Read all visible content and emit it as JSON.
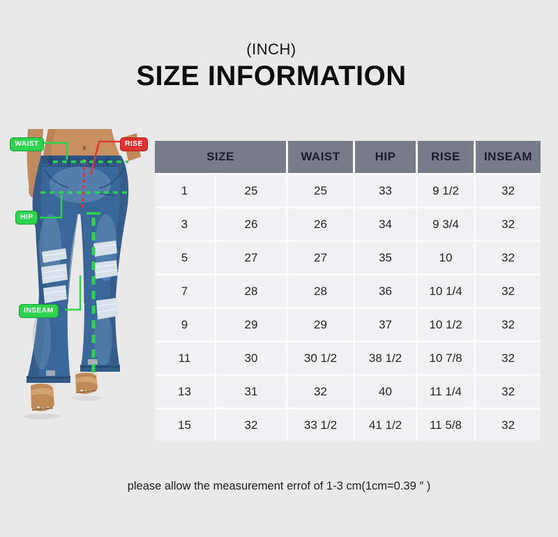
{
  "header": {
    "unit_label": "(INCH)",
    "title": "SIZE INFORMATION"
  },
  "figure": {
    "waist_label": "WAIST",
    "rise_label": "RISE",
    "hip_label": "HIP",
    "inseam_label": "INSEAM"
  },
  "chart_data": {
    "type": "table",
    "title": "SIZE INFORMATION",
    "unit_label": "(INCH)",
    "header_row": [
      "SIZE",
      "WAIST",
      "HIP",
      "RISE",
      "INSEAM"
    ],
    "size_header_colspan": 2,
    "rows": [
      [
        "1",
        "25",
        "25",
        "33",
        "9 1/2",
        "32"
      ],
      [
        "3",
        "26",
        "26",
        "34",
        "9 3/4",
        "32"
      ],
      [
        "5",
        "27",
        "27",
        "35",
        "10",
        "32"
      ],
      [
        "7",
        "28",
        "28",
        "36",
        "10 1/4",
        "32"
      ],
      [
        "9",
        "29",
        "29",
        "37",
        "10 1/2",
        "32"
      ],
      [
        "11",
        "30",
        "30 1/2",
        "38 1/2",
        "10 7/8",
        "32"
      ],
      [
        "13",
        "31",
        "32",
        "40",
        "11 1/4",
        "32"
      ],
      [
        "15",
        "32",
        "33 1/2",
        "41 1/2",
        "11 5/8",
        "32"
      ]
    ]
  },
  "footer": {
    "note": "please allow the measurement errof of 1-3 cm(1cm=0.39 ″ )"
  },
  "colors": {
    "page_bg": "#e9e9e9",
    "header_bg": "#787c89",
    "row_bg": "#f1f1f3",
    "table_gap": "#fbfbfb",
    "annotation_green": "#2ed44d",
    "annotation_red": "#e23333"
  }
}
